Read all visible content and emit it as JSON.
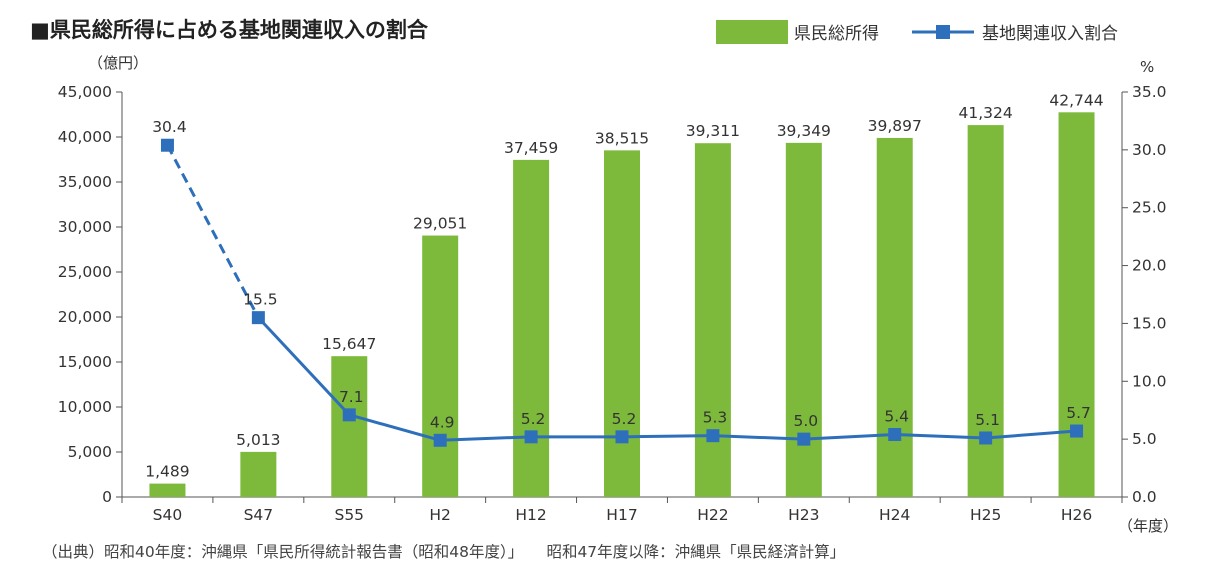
{
  "title": "■県民総所得に占める基地関連収入の割合",
  "source": "（出典）昭和40年度：沖縄県「県民所得統計報告書（昭和48年度）」　　昭和47年度以降：沖縄県「県民経済計算」",
  "colors": {
    "bar": "#7dba3c",
    "line": "#2e6fbb"
  },
  "chart_data": {
    "type": "bar+line",
    "categories": [
      "S40",
      "S47",
      "S55",
      "H2",
      "H12",
      "H17",
      "H22",
      "H23",
      "H24",
      "H25",
      "H26"
    ],
    "series": [
      {
        "name": "県民総所得",
        "type": "bar",
        "axis": "left",
        "values": [
          1489,
          5013,
          15647,
          29051,
          37459,
          38515,
          39311,
          39349,
          39897,
          41324,
          42744
        ],
        "labels": [
          "1,489",
          "5,013",
          "15,647",
          "29,051",
          "37,459",
          "38,515",
          "39,311",
          "39,349",
          "39,897",
          "41,324",
          "42,744"
        ]
      },
      {
        "name": "基地関連収入割合",
        "type": "line",
        "axis": "right",
        "values": [
          30.4,
          15.5,
          7.1,
          4.9,
          5.2,
          5.2,
          5.3,
          5.0,
          5.4,
          5.1,
          5.7
        ],
        "labels": [
          "30.4",
          "15.5",
          "7.1",
          "4.9",
          "5.2",
          "5.2",
          "5.3",
          "5.0",
          "5.4",
          "5.1",
          "5.7"
        ],
        "dashed_segments": [
          0
        ]
      }
    ],
    "y_left": {
      "unit": "（億円）",
      "ylim": [
        0,
        45000
      ],
      "ticks": [
        "0",
        "5,000",
        "10,000",
        "15,000",
        "20,000",
        "25,000",
        "30,000",
        "35,000",
        "40,000",
        "45,000"
      ]
    },
    "y_right": {
      "unit": "%",
      "ylim": [
        0,
        35
      ],
      "ticks": [
        "0.0",
        "5.0",
        "10.0",
        "15.0",
        "20.0",
        "25.0",
        "30.0",
        "35.0"
      ]
    },
    "x_unit": "（年度）",
    "grid": false,
    "legend_position": "top-right"
  }
}
